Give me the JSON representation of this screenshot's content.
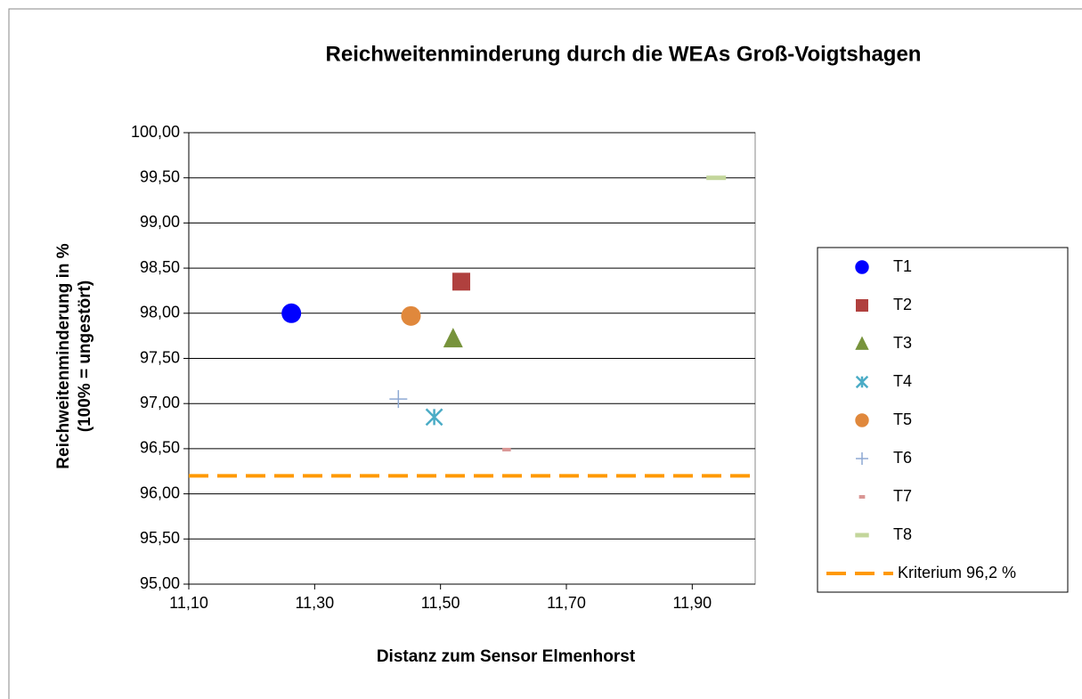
{
  "chart_data": {
    "type": "scatter",
    "title": "Reichweitenminderung durch die WEAs Groß-Voigtshagen",
    "x_label": "Distanz zum Sensor Elmenhorst",
    "y_label": [
      "Reichweitenminderung  in %",
      "(100% = ungestört)"
    ],
    "xlim": [
      11.1,
      12.0
    ],
    "xticks": [
      {
        "value": 11.1,
        "label": "11,10"
      },
      {
        "value": 11.3,
        "label": "11,30"
      },
      {
        "value": 11.5,
        "label": "11,50"
      },
      {
        "value": 11.7,
        "label": "11,70"
      },
      {
        "value": 11.9,
        "label": "11,90"
      }
    ],
    "ylim": [
      95,
      100
    ],
    "yticks": [
      {
        "value": 95,
        "label": "95,00"
      },
      {
        "value": 95.5,
        "label": "95,50"
      },
      {
        "value": 96,
        "label": "96,00"
      },
      {
        "value": 96.5,
        "label": "96,50"
      },
      {
        "value": 97,
        "label": "97,00"
      },
      {
        "value": 97.5,
        "label": "97,50"
      },
      {
        "value": 98,
        "label": "98,00"
      },
      {
        "value": 98.5,
        "label": "98,50"
      },
      {
        "value": 99,
        "label": "99,00"
      },
      {
        "value": 99.5,
        "label": "99,50"
      },
      {
        "value": 100,
        "label": "100,00"
      }
    ],
    "grid": true,
    "legend": "right",
    "series": [
      {
        "name": "T1",
        "color": "#0000ff",
        "marker": "circle",
        "x": [
          11.263
        ],
        "values": [
          98.0
        ]
      },
      {
        "name": "T2",
        "color": "#b0403e",
        "marker": "square",
        "x": [
          11.533
        ],
        "values": [
          98.35
        ]
      },
      {
        "name": "T3",
        "color": "#77933c",
        "marker": "triangle",
        "x": [
          11.52
        ],
        "values": [
          97.72
        ]
      },
      {
        "name": "T4",
        "color": "#4bacc6",
        "marker": "asterisk",
        "x": [
          11.49
        ],
        "values": [
          96.85
        ]
      },
      {
        "name": "T5",
        "color": "#e0883c",
        "marker": "circle",
        "x": [
          11.453
        ],
        "values": [
          97.97
        ]
      },
      {
        "name": "T6",
        "color": "#8ea9d4",
        "marker": "plus",
        "x": [
          11.433
        ],
        "values": [
          97.05
        ]
      },
      {
        "name": "T7",
        "color": "#d99694",
        "marker": "dash",
        "x": [
          11.605
        ],
        "values": [
          96.49
        ]
      },
      {
        "name": "T8",
        "color": "#c3d69b",
        "marker": "dash-wide",
        "x": [
          11.938
        ],
        "values": [
          99.5
        ]
      }
    ],
    "reference_line": {
      "name": "Kriterium 96,2 %",
      "value": 96.2,
      "color": "#ff9900"
    }
  }
}
